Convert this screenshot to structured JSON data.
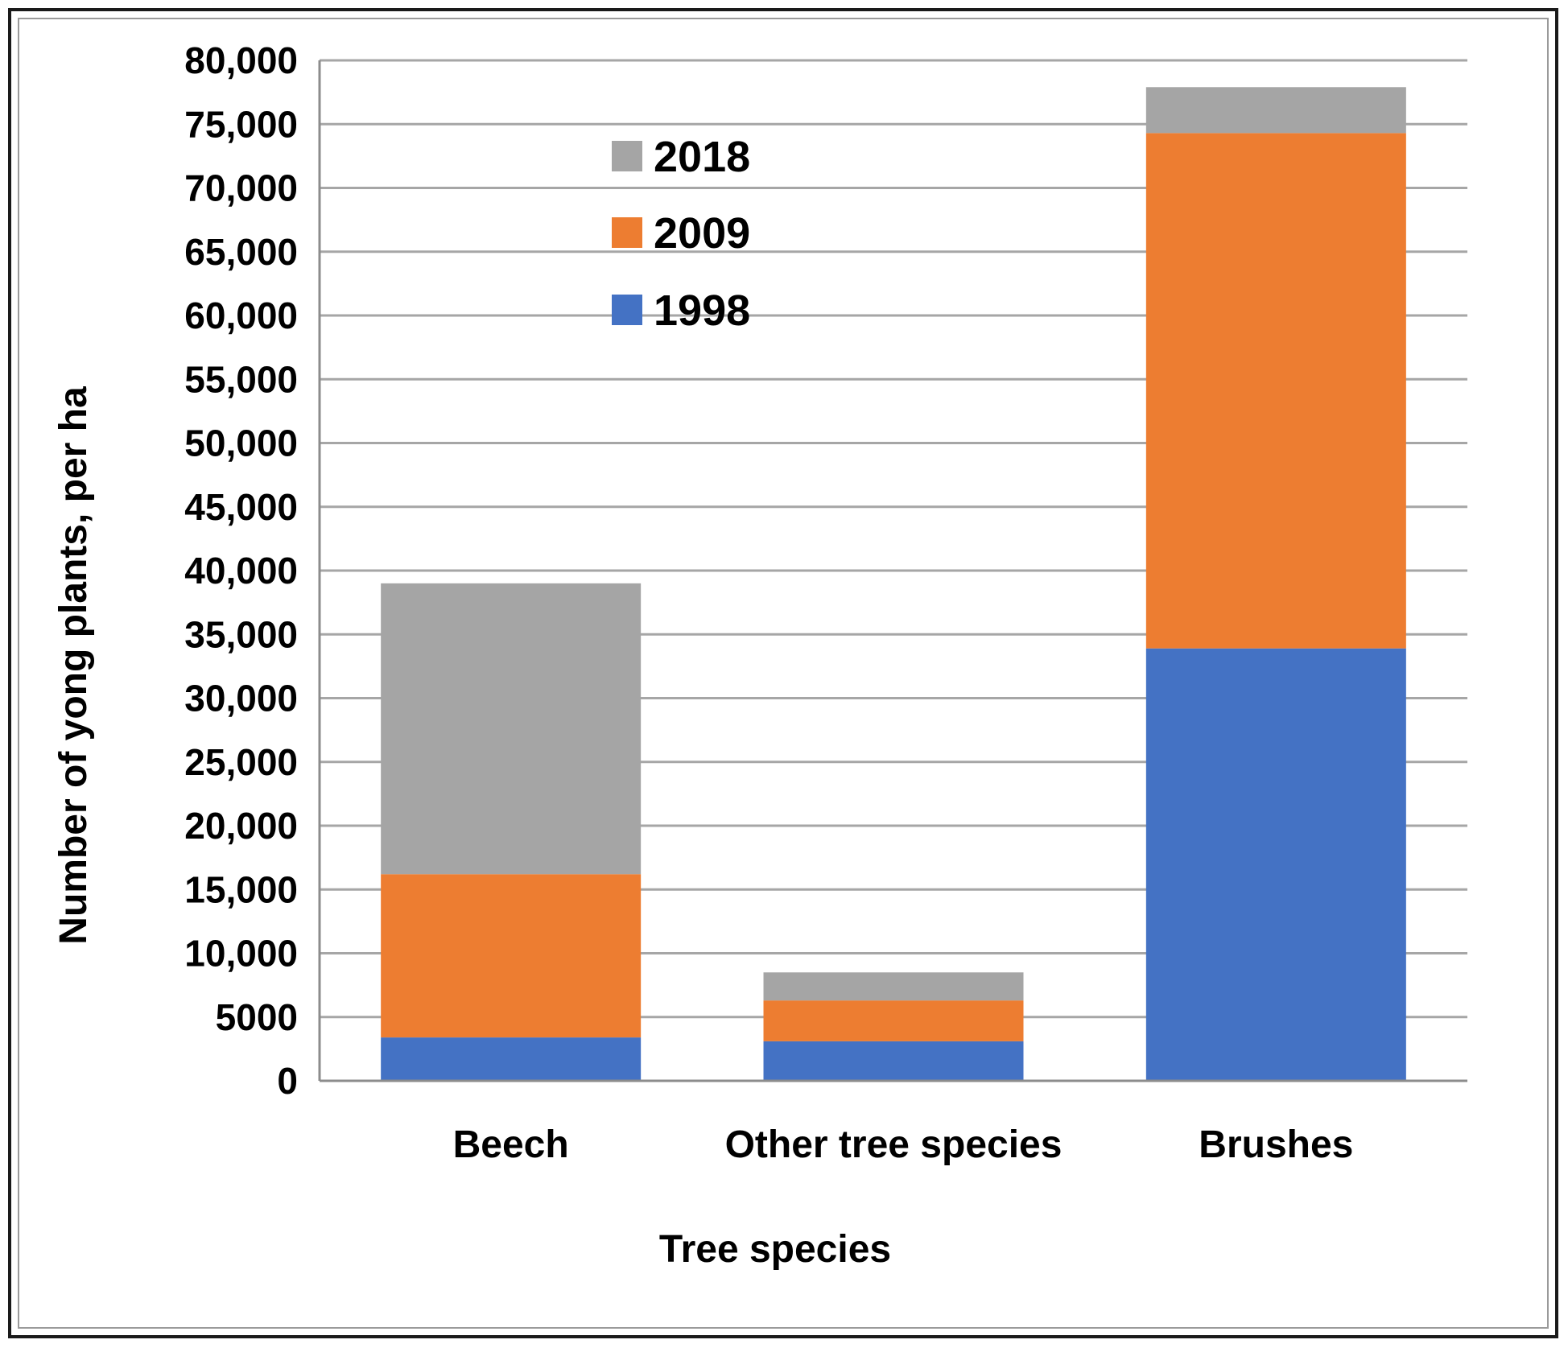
{
  "chart_data": {
    "type": "bar",
    "stacked": true,
    "title": "",
    "xlabel": "Tree species",
    "ylabel": "Number of yong plants, per ha",
    "categories": [
      "Beech",
      "Other tree species",
      "Brushes"
    ],
    "series": [
      {
        "name": "1998",
        "color": "#4472C4",
        "values": [
          3400,
          3100,
          33900
        ]
      },
      {
        "name": "2009",
        "color": "#ED7D31",
        "values": [
          12800,
          3200,
          40400
        ]
      },
      {
        "name": "2018",
        "color": "#A5A5A5",
        "values": [
          22800,
          2200,
          3600
        ]
      }
    ],
    "ylim": [
      0,
      80000
    ],
    "yticks": [
      0,
      5000,
      10000,
      15000,
      20000,
      25000,
      30000,
      35000,
      40000,
      45000,
      50000,
      55000,
      60000,
      65000,
      70000,
      75000,
      80000
    ],
    "ytick_labels": [
      "0",
      "5000",
      "10,000",
      "15,000",
      "20,000",
      "25,000",
      "30,000",
      "35,000",
      "40,000",
      "45,000",
      "50,000",
      "55,000",
      "60,000",
      "65,000",
      "70,000",
      "75,000",
      "80,000"
    ],
    "grid": true,
    "legend_position": "top-left inside plot",
    "legend_order": [
      "2018",
      "2009",
      "1998"
    ]
  },
  "colors": {
    "grid": "#A6A6A6",
    "axis": "#8C8C8C"
  }
}
